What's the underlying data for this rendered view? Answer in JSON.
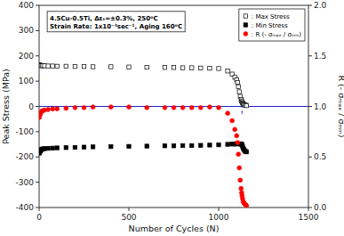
{
  "chart_data": {
    "type": "scatter",
    "xlabel": "Number of Cycles (N)",
    "ylabel": "Peak Stress (MPa)",
    "y2label": "R (- σₘₐₓ / σₘᵢₙ)",
    "xlim": [
      0,
      1500
    ],
    "xticks": [
      0,
      500,
      1000,
      1500
    ],
    "ylim": [
      -400,
      400
    ],
    "yticks": [
      -400,
      -300,
      -200,
      -100,
      0,
      100,
      200,
      300,
      400
    ],
    "y2lim": [
      0.0,
      2.0
    ],
    "y2ticks": [
      {
        "value": 0.0,
        "label": "0.0"
      },
      0.5,
      {
        "value": 1.0,
        "label": "1.0"
      },
      1.5,
      {
        "value": 2.0,
        "label": "2.0"
      }
    ],
    "grid": false,
    "legend": "upper right",
    "annotations": [
      "4.5Cu-0.5Ti, Δεₜ=±0.3%, 250ᵒC",
      "Strain Rate: 1x10⁻³sec⁻¹, Aging 160ᵒC"
    ],
    "reference_lines": [
      {
        "axis": "y",
        "value": 0,
        "color": "#2222cc"
      },
      {
        "axis": "x",
        "value": 1130,
        "from": -30,
        "to": 30,
        "color": "#4444cc",
        "line_style": "dashed"
      }
    ],
    "series": [
      {
        "name": ": Max Stress",
        "color": "black",
        "marker": "open-square",
        "x": [
          2,
          5,
          8,
          10,
          15,
          20,
          30,
          50,
          75,
          100,
          150,
          200,
          250,
          300,
          400,
          500,
          600,
          700,
          750,
          800,
          850,
          900,
          950,
          1000,
          1050,
          1075,
          1090,
          1100,
          1105,
          1110,
          1115,
          1120,
          1125,
          1128,
          1130,
          1133,
          1136,
          1140,
          1145,
          1150,
          1155
        ],
        "values": [
          165,
          163,
          162,
          162,
          161,
          161,
          161,
          160,
          160,
          159,
          159,
          158,
          158,
          157,
          157,
          156,
          155,
          154,
          154,
          153,
          153,
          152,
          151,
          150,
          140,
          128,
          115,
          105,
          95,
          78,
          58,
          40,
          28,
          22,
          18,
          14,
          10,
          8,
          6,
          5,
          3
        ]
      },
      {
        "name": ": Min Stress",
        "color": "black",
        "marker": "square",
        "x": [
          2,
          5,
          8,
          10,
          15,
          20,
          30,
          50,
          75,
          100,
          150,
          200,
          250,
          300,
          400,
          500,
          600,
          700,
          750,
          800,
          850,
          900,
          950,
          1000,
          1050,
          1075,
          1090,
          1100,
          1105,
          1110,
          1115,
          1120,
          1125,
          1128,
          1130,
          1133,
          1136,
          1140,
          1145,
          1150,
          1155
        ],
        "values": [
          -185,
          -178,
          -175,
          -172,
          -170,
          -168,
          -167,
          -166,
          -165,
          -164,
          -163,
          -162,
          -161,
          -160,
          -159,
          -158,
          -157,
          -156,
          -156,
          -155,
          -155,
          -154,
          -153,
          -152,
          -150,
          -149,
          -149,
          -148,
          -148,
          -148,
          -148,
          -148,
          -149,
          -150,
          -152,
          -158,
          -165,
          -170,
          -175,
          -178,
          -180
        ]
      },
      {
        "name": ": R (- σₘₐₓ / σₘᵢₙ)",
        "color": "red",
        "marker": "circle",
        "axis": "y2",
        "x": [
          2,
          5,
          8,
          10,
          15,
          20,
          30,
          50,
          75,
          100,
          150,
          200,
          250,
          300,
          400,
          500,
          600,
          700,
          750,
          800,
          850,
          900,
          950,
          1000,
          1050,
          1075,
          1090,
          1100,
          1105,
          1110,
          1115,
          1120,
          1125,
          1128,
          1130,
          1133,
          1136,
          1140,
          1145,
          1150,
          1155
        ],
        "values": [
          0.892,
          0.918,
          0.929,
          0.942,
          0.953,
          0.958,
          0.963,
          0.969,
          0.975,
          0.976,
          0.982,
          0.988,
          0.988,
          0.994,
          0.994,
          0.994,
          0.988,
          0.988,
          0.988,
          0.988,
          0.988,
          0.988,
          0.994,
          0.988,
          0.932,
          0.859,
          0.772,
          0.71,
          0.642,
          0.527,
          0.392,
          0.27,
          0.188,
          0.147,
          0.118,
          0.089,
          0.061,
          0.047,
          0.034,
          0.028,
          0.017
        ]
      }
    ]
  }
}
